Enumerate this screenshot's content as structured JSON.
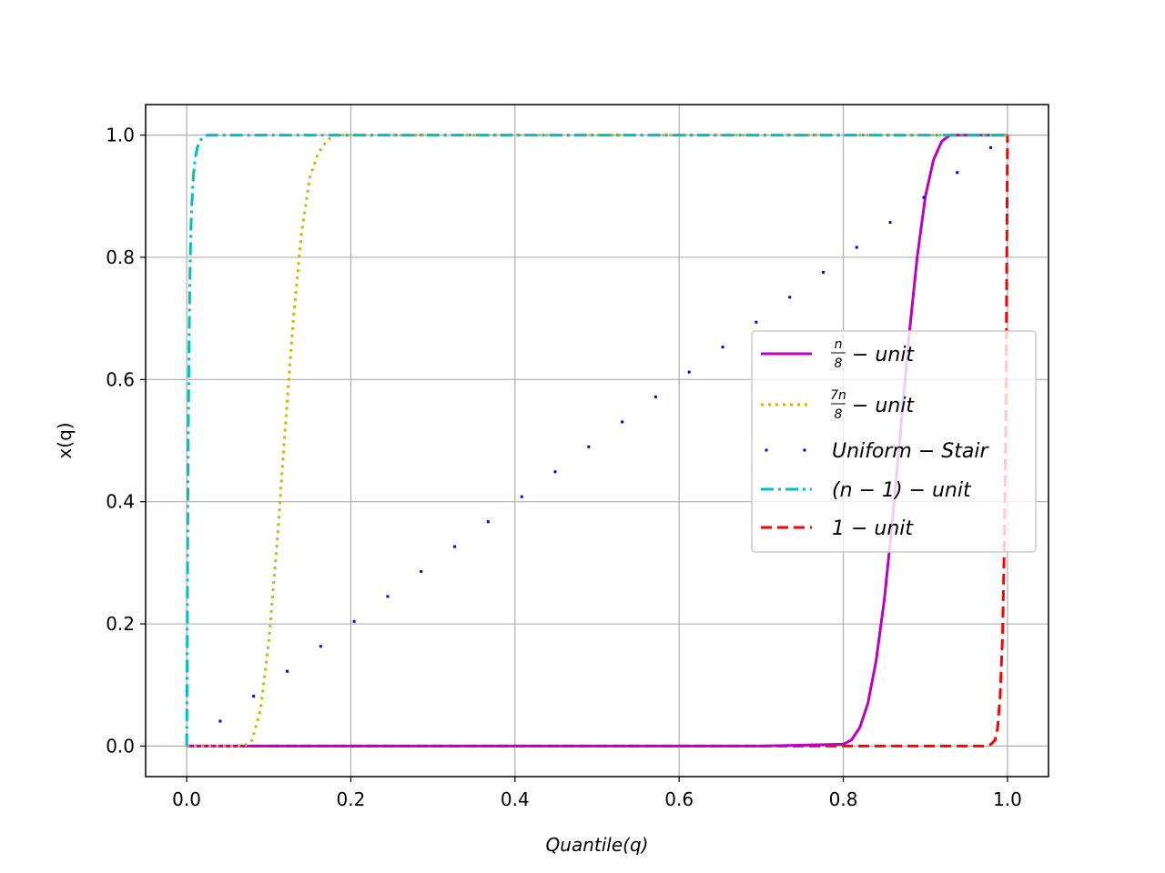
{
  "chart_data": {
    "type": "line",
    "title": "",
    "xlabel": "Quantile(q)",
    "ylabel": "x(q)",
    "xlim": [
      -0.05,
      1.05
    ],
    "ylim": [
      -0.05,
      1.05
    ],
    "xticks": [
      0.0,
      0.2,
      0.4,
      0.6,
      0.8,
      1.0
    ],
    "yticks": [
      0.0,
      0.2,
      0.4,
      0.6,
      0.8,
      1.0
    ],
    "xtick_labels": [
      "0.0",
      "0.2",
      "0.4",
      "0.6",
      "0.8",
      "1.0"
    ],
    "ytick_labels": [
      "0.0",
      "0.2",
      "0.4",
      "0.6",
      "0.8",
      "1.0"
    ],
    "grid": true,
    "legend_position": "center-right",
    "series": [
      {
        "name": "n/8 − unit",
        "style": "solid",
        "color": "#bf00bf",
        "x": [
          0.0,
          0.7,
          0.8,
          0.81,
          0.82,
          0.83,
          0.84,
          0.85,
          0.86,
          0.87,
          0.88,
          0.89,
          0.9,
          0.91,
          0.92,
          0.93,
          0.94,
          1.0
        ],
        "y": [
          0.0,
          0.0,
          0.003,
          0.01,
          0.03,
          0.07,
          0.14,
          0.24,
          0.37,
          0.52,
          0.67,
          0.8,
          0.9,
          0.96,
          0.99,
          1.0,
          1.0,
          1.0
        ]
      },
      {
        "name": "7n/8 − unit",
        "style": "dotted",
        "color": "#bfbf00",
        "x": [
          0.0,
          0.07,
          0.08,
          0.09,
          0.1,
          0.11,
          0.12,
          0.13,
          0.14,
          0.15,
          0.16,
          0.17,
          0.18,
          0.19,
          0.3,
          1.0
        ],
        "y": [
          0.0,
          0.0,
          0.01,
          0.06,
          0.17,
          0.33,
          0.52,
          0.7,
          0.84,
          0.93,
          0.97,
          0.99,
          1.0,
          1.0,
          1.0,
          1.0
        ]
      },
      {
        "name": "Uniform − Stair",
        "style": "markers",
        "color": "#0000ff",
        "x": [
          0.0,
          0.0408,
          0.0816,
          0.1224,
          0.1633,
          0.2041,
          0.2449,
          0.2857,
          0.3265,
          0.3673,
          0.4082,
          0.449,
          0.4898,
          0.5306,
          0.5714,
          0.6122,
          0.6531,
          0.6939,
          0.7347,
          0.7755,
          0.8163,
          0.8571,
          0.898,
          0.9388,
          0.9796
        ],
        "y": [
          0.0,
          0.0408,
          0.0816,
          0.1224,
          0.1633,
          0.2041,
          0.2449,
          0.2857,
          0.3265,
          0.3673,
          0.4082,
          0.449,
          0.4898,
          0.5306,
          0.5714,
          0.6122,
          0.6531,
          0.6939,
          0.7347,
          0.7755,
          0.8163,
          0.8571,
          0.898,
          0.9388,
          0.9796
        ]
      },
      {
        "name": "(n − 1) − unit",
        "style": "dashdot",
        "color": "#00bfbf",
        "x": [
          0.0,
          0.0005,
          0.001,
          0.002,
          0.003,
          0.004,
          0.005,
          0.006,
          0.008,
          0.01,
          0.013,
          0.016,
          0.02,
          0.025,
          0.03,
          0.04,
          1.0
        ],
        "y": [
          0.0,
          0.12,
          0.28,
          0.52,
          0.67,
          0.77,
          0.84,
          0.88,
          0.93,
          0.96,
          0.98,
          0.99,
          0.997,
          1.0,
          1.0,
          1.0,
          1.0
        ],
        "legend_dash": "dashdot"
      },
      {
        "name": "1 − unit",
        "style": "dashed",
        "color": "#ff0000",
        "x": [
          0.0,
          0.96,
          0.975,
          0.98,
          0.985,
          0.988,
          0.991,
          0.994,
          0.996,
          0.998,
          0.999,
          1.0
        ],
        "y": [
          0.0,
          0.0,
          0.0,
          0.003,
          0.01,
          0.03,
          0.08,
          0.18,
          0.32,
          0.55,
          0.75,
          1.0
        ]
      }
    ]
  },
  "legend": [
    {
      "label": "− unit",
      "frac_num": "n",
      "frac_den": "8"
    },
    {
      "label": "− unit",
      "frac_num": "7n",
      "frac_den": "8"
    },
    {
      "label": "Uniform − Stair",
      "frac_num": "",
      "frac_den": ""
    },
    {
      "label": "(n − 1) − unit",
      "frac_num": "",
      "frac_den": ""
    },
    {
      "label": "1 − unit",
      "frac_num": "",
      "frac_den": ""
    }
  ]
}
